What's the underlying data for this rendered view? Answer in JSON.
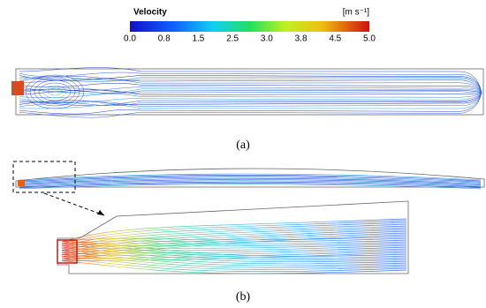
{
  "colorbar": {
    "title": "Velocity",
    "unit": "[m s⁻¹]",
    "ticks": [
      "0.0",
      "0.8",
      "1.5",
      "2.5",
      "3.0",
      "3.8",
      "4.5",
      "5.0"
    ]
  },
  "panels": [
    {
      "label": "(a)"
    },
    {
      "label": "(b)"
    }
  ]
}
